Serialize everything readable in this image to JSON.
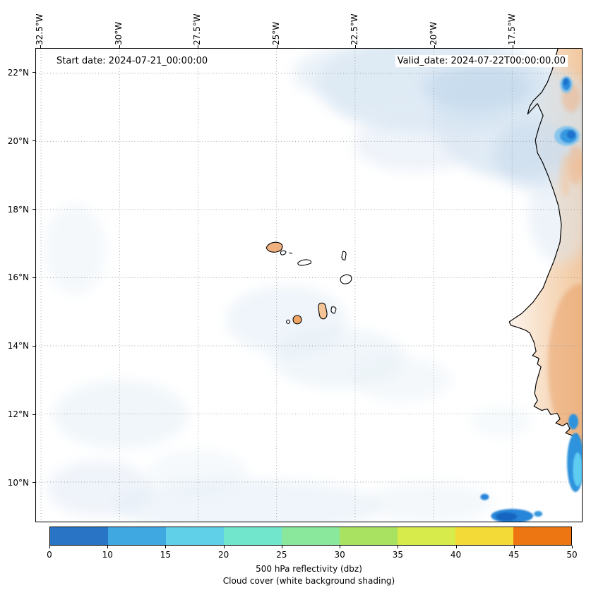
{
  "header": {
    "start_date": "Start date: 2024-07-21_00:00:00",
    "valid_date": "Valid_date: 2024-07-22T00:00:00.00"
  },
  "axes": {
    "extent": {
      "lon_min": -32.66,
      "lon_max": -15.28,
      "lat_max": 22.72,
      "lat_min": 8.84
    },
    "lon_ticks": [
      {
        "deg": -32.5,
        "label": "32.5°W"
      },
      {
        "deg": -30,
        "label": "30°W"
      },
      {
        "deg": -27.5,
        "label": "27.5°W"
      },
      {
        "deg": -25,
        "label": "25°W"
      },
      {
        "deg": -22.5,
        "label": "22.5°W"
      },
      {
        "deg": -20,
        "label": "20°W"
      },
      {
        "deg": -17.5,
        "label": "17.5°W"
      }
    ],
    "lat_ticks": [
      {
        "deg": 22,
        "label": "22°N"
      },
      {
        "deg": 20,
        "label": "20°N"
      },
      {
        "deg": 18,
        "label": "18°N"
      },
      {
        "deg": 16,
        "label": "16°N"
      },
      {
        "deg": 14,
        "label": "14°N"
      },
      {
        "deg": 12,
        "label": "12°N"
      },
      {
        "deg": 10,
        "label": "10°N"
      }
    ]
  },
  "colorbar": {
    "levels": [
      0,
      10,
      15,
      20,
      25,
      30,
      35,
      40,
      45,
      50
    ],
    "tick_labels": [
      "0",
      "10",
      "15",
      "20",
      "25",
      "30",
      "35",
      "40",
      "45",
      "50"
    ],
    "colors": [
      "#2a74c5",
      "#3fa8e0",
      "#60cfe8",
      "#72e5cd",
      "#89e89c",
      "#a9e161",
      "#d7eb4b",
      "#f4da36",
      "#ee7612"
    ],
    "caption_line1": "500 hPa reflectivity (dbz)",
    "caption_line2": "Cloud cover (white background shading)"
  },
  "chart_data": {
    "type": "heatmap",
    "subtype": "geographic filled-contour forecast map",
    "start_date": "2024-07-21_00:00:00",
    "valid_date": "2024-07-22T00:00:00.00",
    "extent": {
      "lon_west": -32.66,
      "lon_east": -15.28,
      "lat_north": 22.72,
      "lat_south": 8.84
    },
    "xlabel_ticks_deg_west": [
      32.5,
      30,
      27.5,
      25,
      22.5,
      20,
      17.5
    ],
    "ylabel_ticks_deg_north": [
      22,
      20,
      18,
      16,
      14,
      12,
      10
    ],
    "grid": "dotted",
    "colorbar": {
      "label": "500 hPa reflectivity (dbz)",
      "orientation": "horizontal",
      "levels": [
        0,
        10,
        15,
        20,
        25,
        30,
        35,
        40,
        45,
        50
      ],
      "colors": [
        "#2a74c5",
        "#3fa8e0",
        "#60cfe8",
        "#72e5cd",
        "#89e89c",
        "#a9e161",
        "#d7eb4b",
        "#f4da36",
        "#ee7612"
      ]
    },
    "background_shading": "Cloud cover (white background shading), light blue",
    "reflectivity_features": [
      {
        "lon": -16.2,
        "lat": 21.65,
        "dbz_bin": "0-10",
        "size_deg": 0.4,
        "note": "small cell on northern coast"
      },
      {
        "lon": -15.9,
        "lat": 20.15,
        "dbz_bin": "0-10",
        "size_deg": 0.7,
        "note": "cell on coast near 20N"
      },
      {
        "lon": -15.45,
        "lat": 10.9,
        "dbz_bin": "0-15",
        "size_deg": 2.0,
        "note": "elongated coastal band with lighter cyan core at map east edge"
      },
      {
        "lon": -18.4,
        "lat": 9.6,
        "dbz_bin": "0-10",
        "size_deg": 0.3,
        "note": "isolated dot"
      },
      {
        "lon": -17.5,
        "lat": 9.0,
        "dbz_bin": "0-10",
        "size_deg": 1.4,
        "note": "elongated blob at southern edge"
      }
    ],
    "cloud_cover_regions": [
      {
        "area": "large patch NE quadrant, ~18.5-23N / 16-24W",
        "intensity": "light-moderate"
      },
      {
        "area": "faint patches around and south of Cape Verde islands, 13-16N / 22-27W",
        "intensity": "faint"
      },
      {
        "area": "faint band along southern edge, ~8.8-10.5N",
        "intensity": "faint"
      },
      {
        "area": "faint patches near western edge",
        "intensity": "faint"
      }
    ],
    "land_features": [
      "West African coastline down the right side with tan/orange terrain shading, deeper orange in the south",
      "Cape Verde archipelago outlined in black; western/high islands shaded orange"
    ]
  }
}
